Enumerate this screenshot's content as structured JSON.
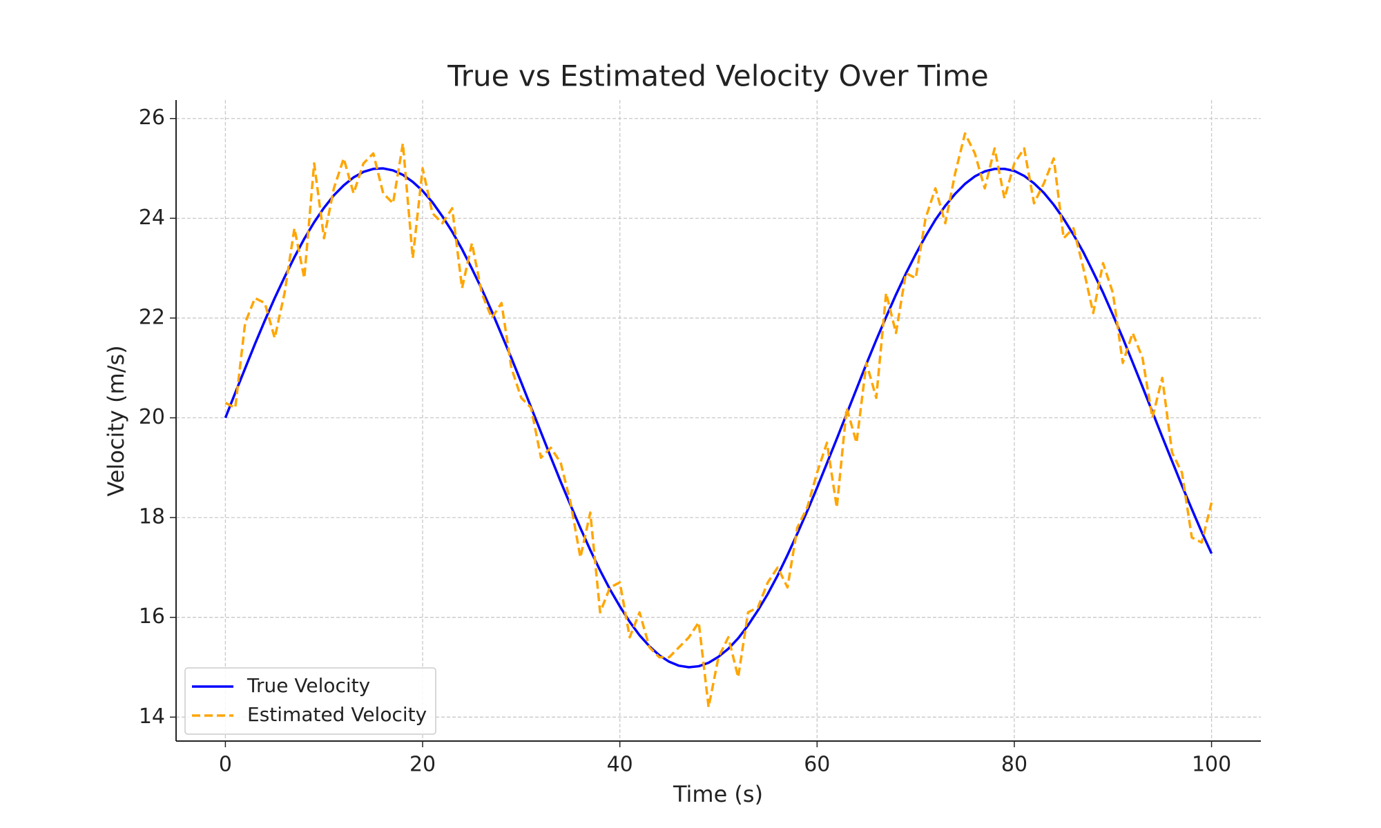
{
  "chart_data": {
    "type": "line",
    "title": "True vs Estimated Velocity Over Time",
    "x_label": "Time (s)",
    "y_label": "Velocity (m/s)",
    "x": [
      0,
      1,
      2,
      3,
      4,
      5,
      6,
      7,
      8,
      9,
      10,
      11,
      12,
      13,
      14,
      15,
      16,
      17,
      18,
      19,
      20,
      21,
      22,
      23,
      24,
      25,
      26,
      27,
      28,
      29,
      30,
      31,
      32,
      33,
      34,
      35,
      36,
      37,
      38,
      39,
      40,
      41,
      42,
      43,
      44,
      45,
      46,
      47,
      48,
      49,
      50,
      51,
      52,
      53,
      54,
      55,
      56,
      57,
      58,
      59,
      60,
      61,
      62,
      63,
      64,
      65,
      66,
      67,
      68,
      69,
      70,
      71,
      72,
      73,
      74,
      75,
      76,
      77,
      78,
      79,
      80,
      81,
      82,
      83,
      84,
      85,
      86,
      87,
      88,
      89,
      90,
      91,
      92,
      93,
      94,
      95,
      96,
      97,
      98,
      99,
      100
    ],
    "series": [
      {
        "name": "True Velocity",
        "color": "#0000ff",
        "dashed": false,
        "values": [
          20,
          20.5,
          20.99,
          21.48,
          21.95,
          22.4,
          22.82,
          23.22,
          23.59,
          23.92,
          24.21,
          24.46,
          24.66,
          24.82,
          24.93,
          24.99,
          25,
          24.96,
          24.87,
          24.73,
          24.55,
          24.32,
          24.04,
          23.73,
          23.38,
          22.99,
          22.58,
          22.14,
          21.67,
          21.2,
          20.71,
          20.21,
          19.71,
          19.21,
          18.72,
          18.25,
          17.79,
          17.35,
          16.94,
          16.56,
          16.22,
          15.91,
          15.64,
          15.42,
          15.24,
          15.11,
          15.03,
          15,
          15.02,
          15.09,
          15.21,
          15.37,
          15.58,
          15.84,
          16.14,
          16.47,
          16.84,
          17.25,
          17.68,
          18.13,
          18.6,
          19.09,
          19.58,
          20.08,
          20.58,
          21.08,
          21.56,
          22.02,
          22.47,
          22.89,
          23.28,
          23.64,
          23.97,
          24.25,
          24.49,
          24.69,
          24.84,
          24.94,
          24.99,
          24.99,
          24.95,
          24.85,
          24.7,
          24.51,
          24.27,
          23.99,
          23.67,
          23.32,
          22.92,
          22.51,
          22.06,
          21.6,
          21.11,
          20.62,
          20.12,
          19.62,
          19.13,
          18.64,
          18.17,
          17.71,
          17.28
        ]
      },
      {
        "name": "Estimated Velocity",
        "color": "#ffa500",
        "dashed": true,
        "values": [
          20.3,
          20.2,
          21.9,
          22.4,
          22.3,
          21.6,
          22.5,
          23.8,
          22.8,
          25.1,
          23.6,
          24.6,
          25.2,
          24.5,
          25.1,
          25.3,
          24.5,
          24.3,
          25.5,
          23.2,
          25,
          24.1,
          23.9,
          24.2,
          22.6,
          23.5,
          22.5,
          22,
          22.3,
          21,
          20.4,
          20.2,
          19.2,
          19.4,
          19.1,
          18.3,
          17.2,
          18.1,
          16.1,
          16.6,
          16.7,
          15.6,
          16.1,
          15.4,
          15.2,
          15.2,
          15.4,
          15.6,
          15.9,
          14.2,
          15.2,
          15.6,
          14.8,
          16.1,
          16.2,
          16.7,
          17,
          16.6,
          17.8,
          18.2,
          18.9,
          19.5,
          18.2,
          20.2,
          19.5,
          21.1,
          20.4,
          22.5,
          21.7,
          22.9,
          22.8,
          24,
          24.6,
          23.9,
          24.9,
          25.7,
          25.3,
          24.6,
          25.4,
          24.4,
          25.1,
          25.4,
          24.3,
          24.7,
          25.2,
          23.6,
          23.8,
          23,
          22.1,
          23.1,
          22.5,
          21.1,
          21.7,
          21.2,
          20,
          20.8,
          19.3,
          18.9,
          17.6,
          17.5,
          18.3
        ]
      }
    ],
    "xlim": [
      -5,
      105
    ],
    "ylim": [
      13.52,
      26.37
    ],
    "xticks": [
      0,
      20,
      40,
      60,
      80,
      100
    ],
    "yticks": [
      14,
      16,
      18,
      20,
      22,
      24,
      26
    ],
    "grid": true,
    "legend": "lower left"
  }
}
